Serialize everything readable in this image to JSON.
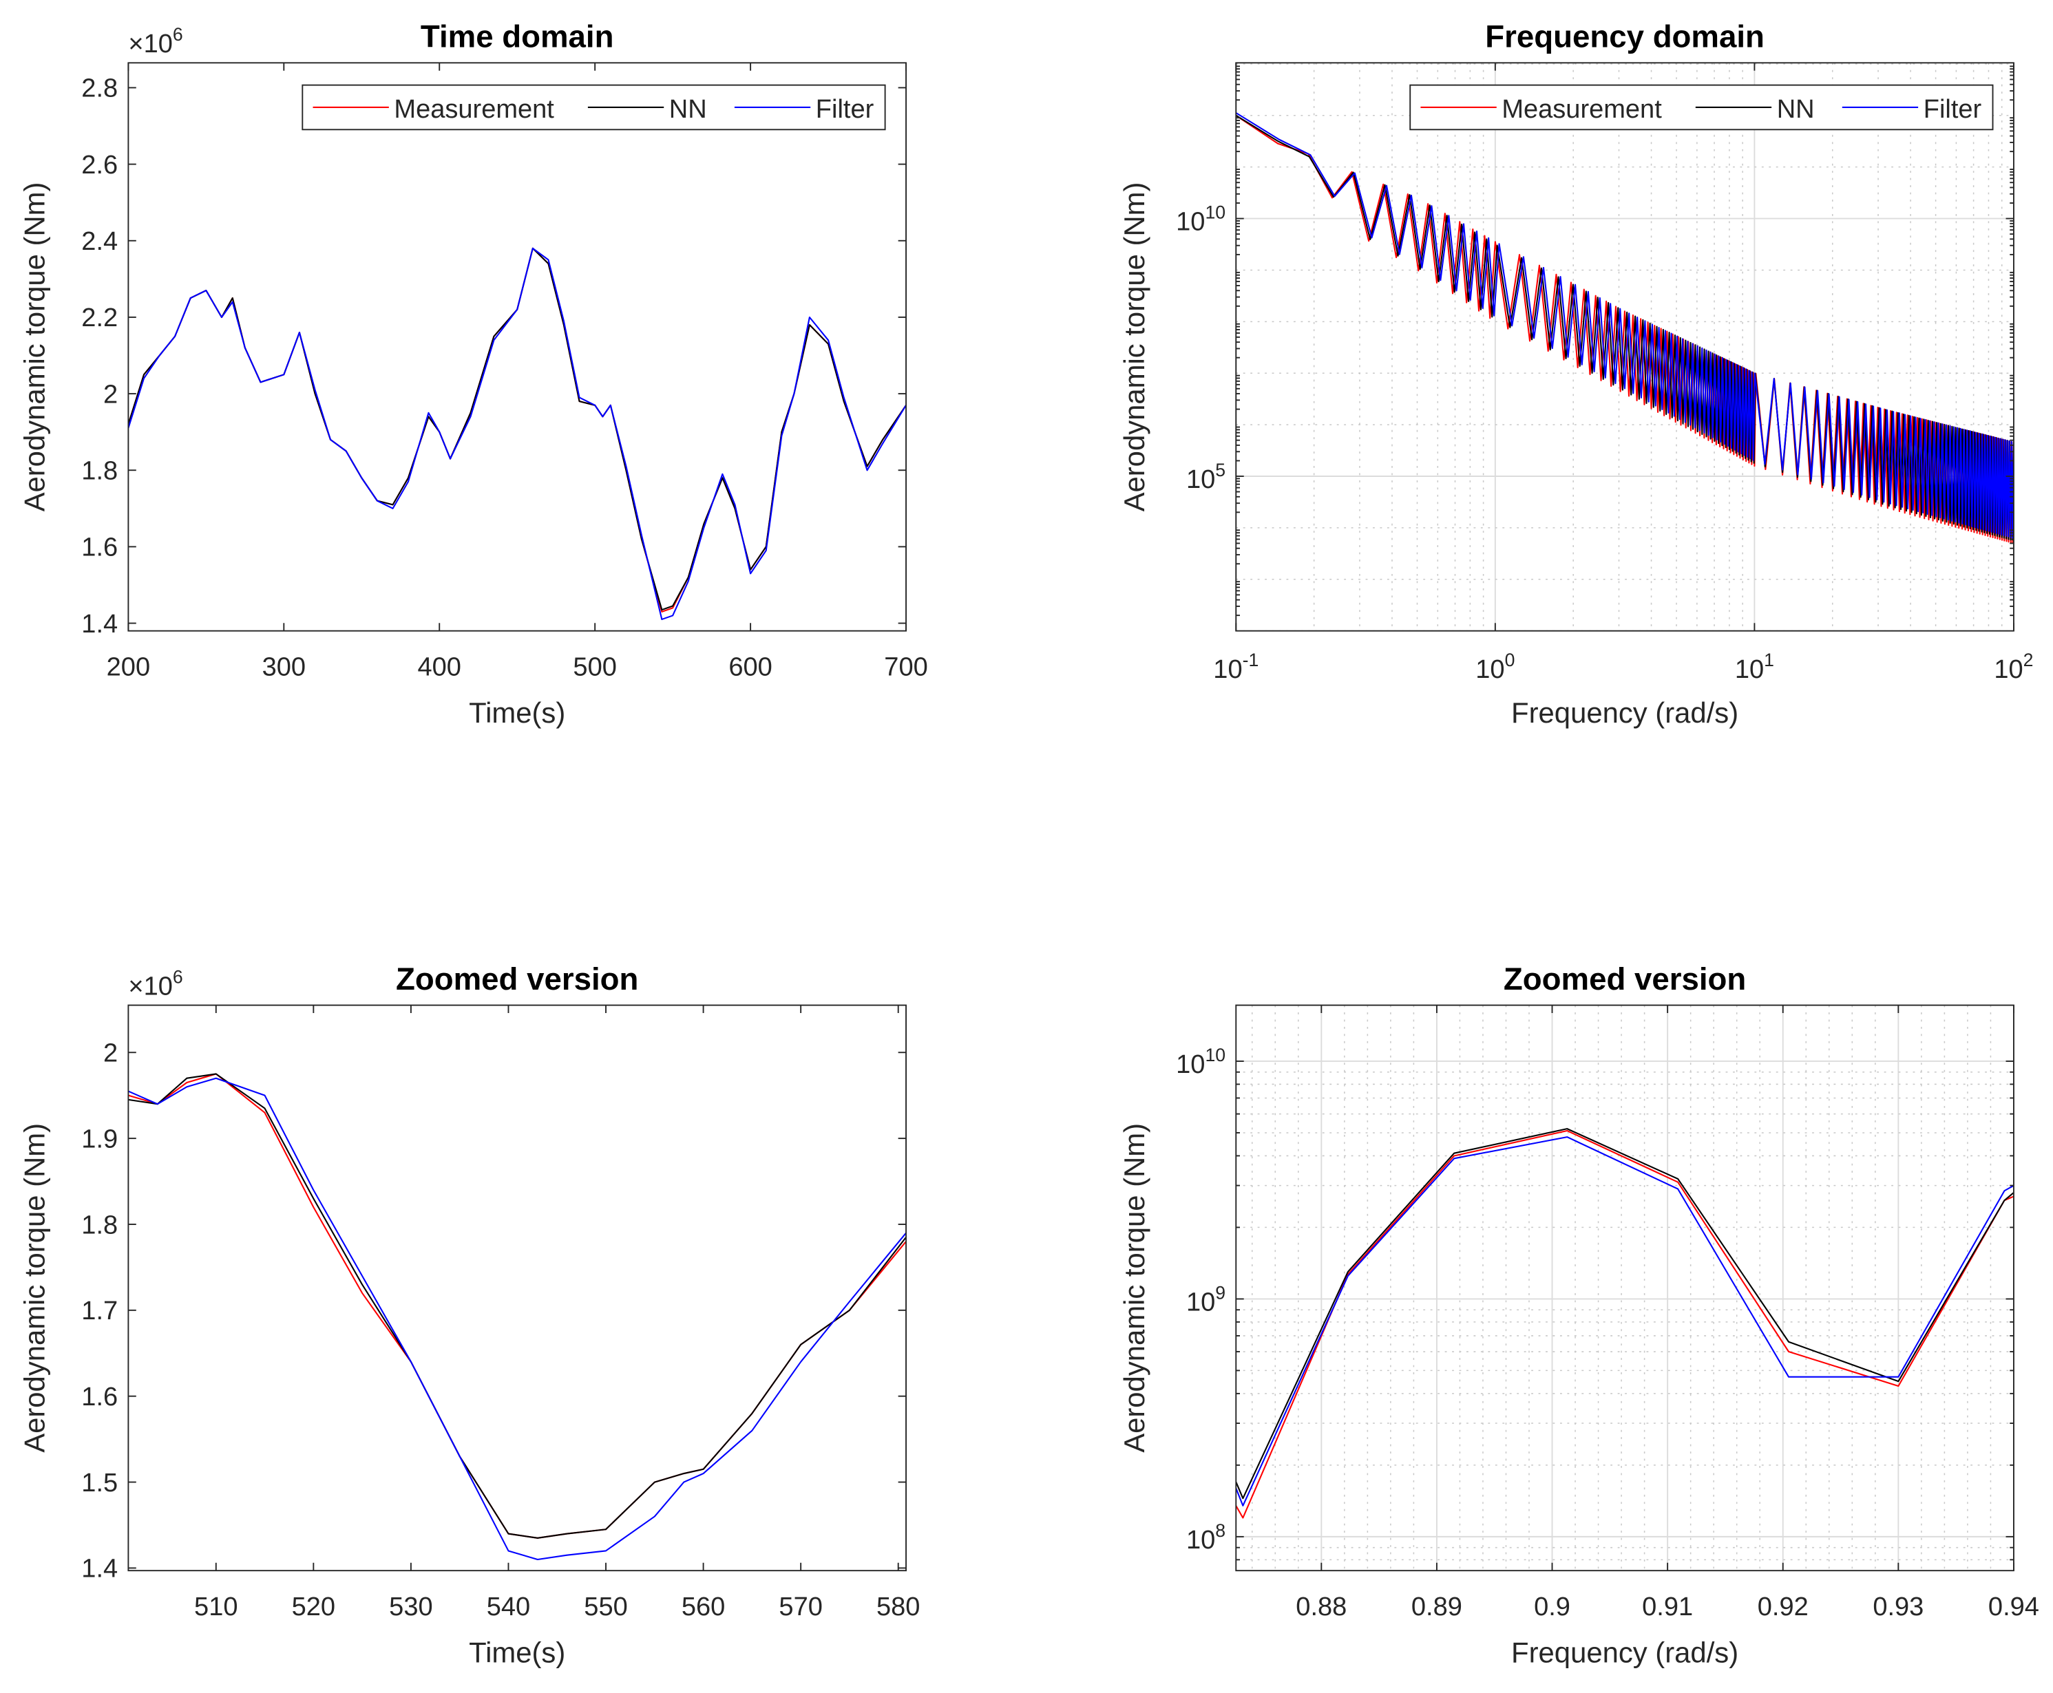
{
  "chart_data": [
    {
      "type": "line",
      "title": "Time domain",
      "xlabel": "Time(s)",
      "ylabel": "Aerodynamic torque (Nm)",
      "y_multiplier": "×10^6",
      "xscale": "linear",
      "yscale": "linear",
      "xlim": [
        200,
        700
      ],
      "ylim": [
        1.38,
        2.865
      ],
      "xticks": [
        200,
        300,
        400,
        500,
        600,
        700
      ],
      "xtick_labels": [
        "200",
        "300",
        "400",
        "500",
        "600",
        "700"
      ],
      "yticks": [
        1.4,
        1.6,
        1.8,
        2.0,
        2.2,
        2.4,
        2.6,
        2.8
      ],
      "ytick_labels": [
        "1.4",
        "1.6",
        "1.8",
        "2",
        "2.2",
        "2.4",
        "2.6",
        "2.8"
      ],
      "grid": false,
      "legend": {
        "placement": "top-right",
        "orientation": "horizontal"
      },
      "x": [
        200,
        210,
        220,
        230,
        240,
        250,
        260,
        267,
        275,
        285,
        300,
        310,
        320,
        330,
        340,
        350,
        360,
        370,
        380,
        393,
        400,
        407,
        420,
        435,
        450,
        460,
        470,
        480,
        490,
        500,
        505,
        510,
        520,
        530,
        543,
        550,
        560,
        570,
        582,
        590,
        600,
        610,
        620,
        628,
        638,
        650,
        660,
        675,
        685,
        700
      ],
      "series": [
        {
          "name": "Measurement",
          "color": "#ff0000",
          "values": [
            1.92,
            2.05,
            2.1,
            2.15,
            2.25,
            2.27,
            2.2,
            2.25,
            2.12,
            2.03,
            2.05,
            2.16,
            2.0,
            1.88,
            1.85,
            1.78,
            1.72,
            1.71,
            1.78,
            1.94,
            1.9,
            1.83,
            1.95,
            2.15,
            2.22,
            2.38,
            2.34,
            2.18,
            1.98,
            1.97,
            1.94,
            1.97,
            1.8,
            1.62,
            1.43,
            1.44,
            1.52,
            1.66,
            1.78,
            1.7,
            1.54,
            1.6,
            1.9,
            2.0,
            2.18,
            2.13,
            1.98,
            1.81,
            1.88,
            1.97
          ]
        },
        {
          "name": "NN",
          "color": "#000000",
          "values": [
            1.92,
            2.05,
            2.1,
            2.15,
            2.25,
            2.27,
            2.2,
            2.25,
            2.12,
            2.03,
            2.05,
            2.16,
            2.0,
            1.88,
            1.85,
            1.78,
            1.72,
            1.71,
            1.78,
            1.94,
            1.9,
            1.83,
            1.95,
            2.15,
            2.22,
            2.38,
            2.34,
            2.18,
            1.98,
            1.97,
            1.94,
            1.97,
            1.8,
            1.62,
            1.435,
            1.445,
            1.52,
            1.66,
            1.78,
            1.7,
            1.54,
            1.6,
            1.9,
            2.0,
            2.18,
            2.13,
            1.98,
            1.81,
            1.88,
            1.97
          ]
        },
        {
          "name": "Filter",
          "color": "#0000ff",
          "values": [
            1.91,
            2.04,
            2.1,
            2.15,
            2.25,
            2.27,
            2.2,
            2.24,
            2.12,
            2.03,
            2.05,
            2.16,
            2.01,
            1.88,
            1.85,
            1.78,
            1.72,
            1.7,
            1.77,
            1.95,
            1.9,
            1.83,
            1.94,
            2.14,
            2.22,
            2.38,
            2.35,
            2.19,
            1.99,
            1.97,
            1.94,
            1.97,
            1.81,
            1.63,
            1.41,
            1.42,
            1.51,
            1.65,
            1.79,
            1.71,
            1.53,
            1.59,
            1.89,
            2.0,
            2.2,
            2.14,
            1.99,
            1.8,
            1.87,
            1.97
          ]
        }
      ]
    },
    {
      "type": "line",
      "title": "Frequency domain",
      "xlabel": "Frequency (rad/s)",
      "ylabel": "Aerodynamic torque (Nm)",
      "xscale": "log",
      "yscale": "log",
      "xlim": [
        0.1,
        100
      ],
      "ylim": [
        100,
        10500000000000.0
      ],
      "xticks": [
        0.1,
        1,
        10,
        100
      ],
      "xtick_labels": [
        [
          "10",
          "-1"
        ],
        [
          "10",
          "0"
        ],
        [
          "10",
          "1"
        ],
        [
          "10",
          "2"
        ]
      ],
      "yticks": [
        100000,
        10000000000
      ],
      "ytick_labels": [
        [
          "10",
          "5"
        ],
        [
          "10",
          "10"
        ]
      ],
      "grid": true,
      "legend": {
        "placement": "top-right",
        "orientation": "horizontal"
      },
      "note": "oscillating spectra; values given as upper/lower envelopes",
      "log10_frequency": [
        -1,
        -0.85,
        -0.7,
        -0.6,
        -0.5,
        -0.3,
        0,
        0.5,
        1,
        1.5,
        2
      ],
      "series": [
        {
          "name": "Measurement",
          "color": "#ff0000",
          "log10_upper": [
            12.0,
            11.6,
            11.2,
            11.0,
            10.8,
            10.4,
            9.55,
            8.2,
            7.0,
            6.3,
            5.66
          ],
          "log10_lower": [
            11.9,
            11.5,
            10.9,
            10.2,
            9.6,
            9.0,
            8.0,
            6.6,
            5.2,
            4.4,
            3.7
          ]
        },
        {
          "name": "NN",
          "color": "#000000",
          "log10_upper": [
            12.0,
            11.6,
            11.15,
            11.0,
            10.8,
            10.4,
            9.5,
            8.2,
            7.0,
            6.3,
            5.66
          ],
          "log10_lower": [
            11.9,
            11.5,
            10.9,
            10.2,
            9.6,
            9.0,
            8.0,
            6.6,
            5.2,
            4.4,
            3.7
          ]
        },
        {
          "name": "Filter",
          "color": "#0000ff",
          "log10_upper": [
            12.05,
            11.6,
            11.2,
            11.0,
            10.8,
            10.4,
            9.55,
            8.2,
            7.0,
            6.3,
            5.66
          ],
          "log10_lower": [
            11.95,
            11.5,
            10.9,
            10.2,
            9.6,
            9.0,
            8.0,
            6.6,
            5.2,
            4.4,
            3.7
          ]
        }
      ]
    },
    {
      "type": "line",
      "title": "Zoomed version",
      "xlabel": "Time(s)",
      "ylabel": "Aerodynamic torque (Nm)",
      "y_multiplier": "×10^6",
      "xscale": "linear",
      "yscale": "linear",
      "xlim": [
        501,
        580.8
      ],
      "ylim": [
        1.397,
        2.055
      ],
      "xticks": [
        510,
        520,
        530,
        540,
        550,
        560,
        570,
        580
      ],
      "xtick_labels": [
        "510",
        "520",
        "530",
        "540",
        "550",
        "560",
        "570",
        "580"
      ],
      "yticks": [
        1.4,
        1.5,
        1.6,
        1.7,
        1.8,
        1.9,
        2.0
      ],
      "ytick_labels": [
        "1.4",
        "1.5",
        "1.6",
        "1.7",
        "1.8",
        "1.9",
        "2"
      ],
      "grid": false,
      "x": [
        501,
        504,
        507,
        510,
        515,
        520,
        525,
        530,
        535,
        540,
        543,
        546,
        550,
        555,
        558,
        560,
        565,
        570,
        575,
        580.8
      ],
      "series": [
        {
          "name": "Measurement",
          "color": "#ff0000",
          "values": [
            1.95,
            1.94,
            1.965,
            1.975,
            1.93,
            1.82,
            1.72,
            1.64,
            1.53,
            1.44,
            1.435,
            1.44,
            1.445,
            1.5,
            1.51,
            1.515,
            1.58,
            1.66,
            1.7,
            1.78
          ]
        },
        {
          "name": "NN",
          "color": "#000000",
          "values": [
            1.945,
            1.94,
            1.97,
            1.975,
            1.935,
            1.83,
            1.73,
            1.64,
            1.53,
            1.44,
            1.435,
            1.44,
            1.445,
            1.5,
            1.51,
            1.515,
            1.58,
            1.66,
            1.7,
            1.785
          ]
        },
        {
          "name": "Filter",
          "color": "#0000ff",
          "values": [
            1.955,
            1.94,
            1.96,
            1.97,
            1.95,
            1.84,
            1.74,
            1.64,
            1.53,
            1.42,
            1.41,
            1.415,
            1.42,
            1.46,
            1.5,
            1.51,
            1.56,
            1.64,
            1.71,
            1.79
          ]
        }
      ]
    },
    {
      "type": "line",
      "title": "Zoomed version",
      "xlabel": "Frequency (rad/s)",
      "ylabel": "Aerodynamic torque (Nm)",
      "xscale": "linear",
      "yscale": "log",
      "xlim": [
        0.8726,
        0.94
      ],
      "ylim": [
        72000000,
        17200000000
      ],
      "xticks": [
        0.88,
        0.89,
        0.9,
        0.91,
        0.92,
        0.93,
        0.94
      ],
      "xtick_labels": [
        "0.88",
        "0.89",
        "0.9",
        "0.91",
        "0.92",
        "0.93",
        "0.94"
      ],
      "yticks": [
        100000000,
        1000000000,
        10000000000
      ],
      "ytick_labels": [
        [
          "10",
          "8"
        ],
        [
          "10",
          "9"
        ],
        [
          "10",
          "10"
        ]
      ],
      "grid": true,
      "x": [
        0.8726,
        0.8732,
        0.8823,
        0.8915,
        0.9013,
        0.9109,
        0.9205,
        0.93,
        0.9392,
        0.94
      ],
      "series": [
        {
          "name": "Measurement",
          "color": "#ff0000",
          "values": [
            135000000.0,
            120000000.0,
            1270000000.0,
            4000000000.0,
            5100000000.0,
            3100000000.0,
            600000000.0,
            430000000.0,
            2600000000.0,
            2700000000.0
          ]
        },
        {
          "name": "NN",
          "color": "#000000",
          "values": [
            170000000.0,
            145000000.0,
            1300000000.0,
            4100000000.0,
            5200000000.0,
            3200000000.0,
            660000000.0,
            450000000.0,
            2600000000.0,
            2800000000.0
          ]
        },
        {
          "name": "Filter",
          "color": "#0000ff",
          "values": [
            160000000.0,
            135000000.0,
            1250000000.0,
            3900000000.0,
            4800000000.0,
            2900000000.0,
            470000000.0,
            470000000.0,
            2850000000.0,
            3000000000.0
          ]
        }
      ]
    }
  ],
  "multiplier_label": {
    "base": "×10",
    "exp": "6"
  }
}
